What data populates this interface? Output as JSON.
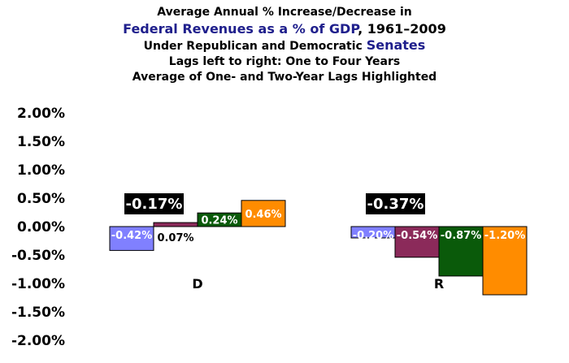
{
  "title": {
    "line1": "Average Annual % Increase/Decrease in",
    "line2_accent": "Federal Revenues as a % of GDP",
    "line2_rest": ", 1961–2009",
    "line3_pre": "Under Republican and Democratic ",
    "line3_accent": "Senates",
    "line4": "Lags left to right: One to Four Years",
    "line5": "Average of One- and Two-Year Lags Highlighted"
  },
  "chart_data": {
    "type": "bar",
    "categories": [
      "D",
      "R"
    ],
    "series": [
      {
        "values": [
          -0.42,
          -0.2
        ],
        "labels": [
          "-0.42%",
          "-0.20%"
        ],
        "color": "#8080ff",
        "label_color": "#ffffff"
      },
      {
        "values": [
          0.07,
          -0.54
        ],
        "labels": [
          "0.07%",
          "-0.54%"
        ],
        "color": "#8b2a5a",
        "label_color": "#ffffff"
      },
      {
        "values": [
          0.24,
          -0.87
        ],
        "labels": [
          "0.24%",
          "-0.87%"
        ],
        "color": "#0a5a0a",
        "label_color": "#ffffff"
      },
      {
        "values": [
          0.46,
          -1.2
        ],
        "labels": [
          "0.46%",
          "-1.20%"
        ],
        "color": "#ff8c00",
        "label_color": "#ffffff"
      }
    ],
    "highlight_averages": [
      {
        "category": "D",
        "value": -0.17,
        "label": "-0.17%"
      },
      {
        "category": "R",
        "value": -0.37,
        "label": "-0.37%"
      }
    ],
    "ylim": [
      -2.0,
      2.0
    ],
    "yticks": [
      2.0,
      1.5,
      1.0,
      0.5,
      0.0,
      -0.5,
      -1.0,
      -1.5,
      -2.0
    ],
    "ytick_labels": [
      "2.00%",
      "1.50%",
      "1.00%",
      "0.50%",
      "0.00%",
      "-0.50%",
      "-1.00%",
      "-1.50%",
      "-2.00%"
    ],
    "xlabel": "",
    "ylabel": "",
    "grid": false,
    "legend": "none"
  }
}
